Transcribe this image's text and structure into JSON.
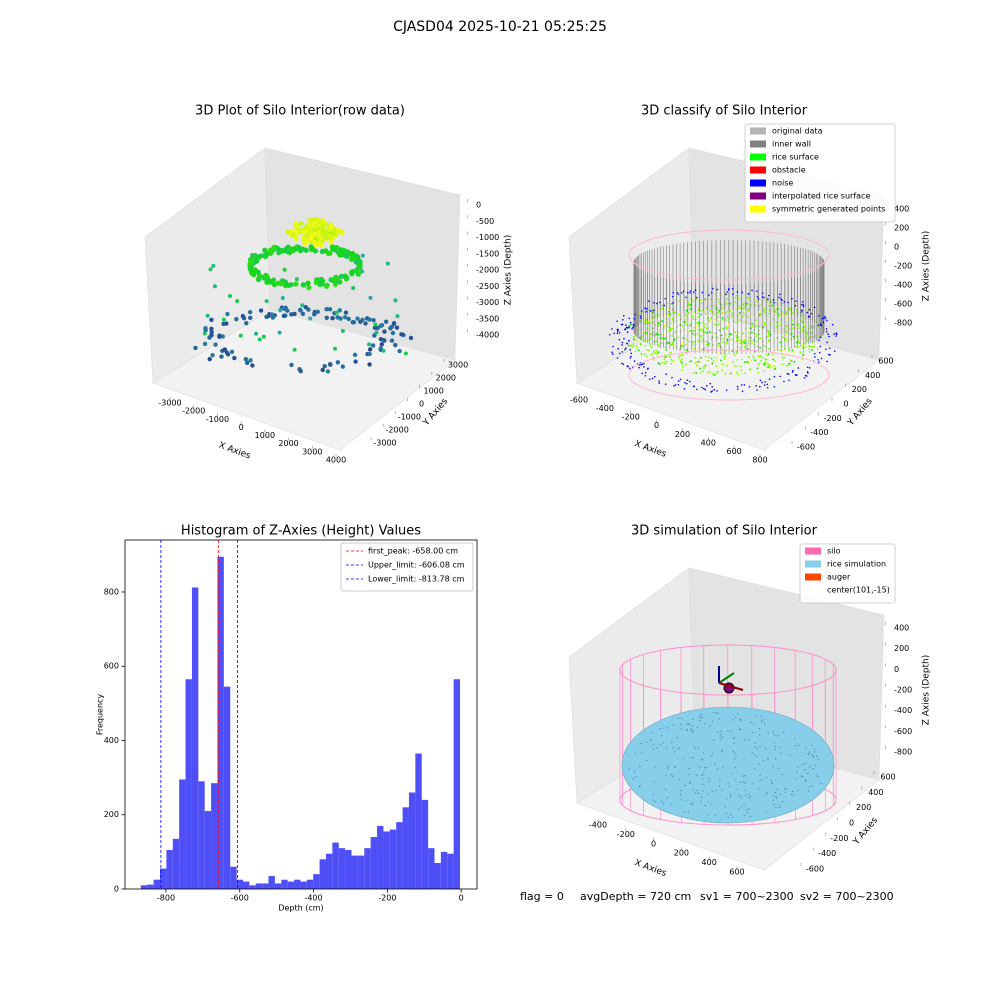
{
  "title": "CJASD04 2025-10-21 05:25:25",
  "chart_data": [
    {
      "type": "scatter3d",
      "title": "3D Plot of Silo Interior(row data)",
      "xlabel": "X Axies",
      "ylabel": "Y Axies",
      "zlabel": "Z Axies (Depth)",
      "xlim": [
        -3000,
        4000
      ],
      "xticks": [
        -3000,
        -2000,
        -1000,
        0,
        1000,
        2000,
        3000,
        4000
      ],
      "ylim": [
        -3000,
        3000
      ],
      "yticks": [
        -3000,
        -2000,
        -1000,
        0,
        1000,
        2000,
        3000
      ],
      "zlim": [
        0,
        -4000
      ],
      "zticks": [
        0,
        -500,
        -1000,
        -1500,
        -2000,
        -2500,
        -3000,
        -3500,
        -4000
      ]
    },
    {
      "type": "scatter3d",
      "title": "3D classify of Silo Interior",
      "xlabel": "X Axies",
      "ylabel": "Y Axies",
      "zlabel": "Z Axies (Depth)",
      "xlim": [
        -600,
        800
      ],
      "xticks": [
        -600,
        -400,
        -200,
        0,
        200,
        400,
        600,
        800
      ],
      "ylim": [
        -600,
        600
      ],
      "yticks": [
        -600,
        -400,
        -200,
        0,
        200,
        400,
        600
      ],
      "zlim": [
        400,
        -800
      ],
      "zticks": [
        400,
        200,
        0,
        -200,
        -400,
        -600,
        -800
      ],
      "legend": [
        {
          "name": "original data",
          "color": "#b3b3b3"
        },
        {
          "name": "inner wall",
          "color": "#808080"
        },
        {
          "name": "rice surface",
          "color": "#00ff00"
        },
        {
          "name": "obstacle",
          "color": "#ff0000"
        },
        {
          "name": "noise",
          "color": "#0000ff"
        },
        {
          "name": "interpolated rice surface",
          "color": "#800080"
        },
        {
          "name": "symmetric generated points",
          "color": "#ffff00"
        }
      ]
    },
    {
      "type": "histogram",
      "title": "Histogram of Z-Axies (Height) Values",
      "xlabel": "Depth (cm)",
      "ylabel": "Frequency",
      "color": "#4f4ff7",
      "bins": [
        -868,
        -850.7,
        -833.4,
        -816.1,
        -798.8,
        -781.5,
        -764.2,
        -746.9,
        -729.6,
        -712.3,
        -695,
        -677.7,
        -660.4,
        -643.1,
        -625.8,
        -608.5,
        -591.2,
        -573.9,
        -556.6,
        -539.3,
        -522,
        -504.7,
        -487.4,
        -470.1,
        -452.8,
        -435.5,
        -418.2,
        -400.9,
        -383.6,
        -366.3,
        -349,
        -331.7,
        -314.4,
        -297.1,
        -279.8,
        -262.5,
        -245.2,
        -227.9,
        -210.6,
        -193.3,
        -176,
        -158.7,
        -141.4,
        -124.1,
        -106.8,
        -89.5,
        -72.2,
        -54.9,
        -37.6,
        -20.3,
        -3
      ],
      "values": [
        10,
        12,
        25,
        55,
        105,
        135,
        295,
        565,
        812,
        290,
        210,
        285,
        895,
        545,
        60,
        25,
        20,
        10,
        15,
        15,
        35,
        15,
        25,
        20,
        25,
        20,
        25,
        40,
        80,
        95,
        125,
        110,
        105,
        90,
        90,
        110,
        140,
        170,
        155,
        160,
        180,
        220,
        260,
        365,
        240,
        110,
        70,
        100,
        95,
        565
      ],
      "xlim": [
        -911,
        43
      ],
      "xticks": [
        -800,
        -600,
        -400,
        -200,
        0
      ],
      "ylim": [
        0,
        940
      ],
      "yticks": [
        0,
        200,
        400,
        600,
        800
      ],
      "lines": [
        {
          "label": "first_peak: -658.00 cm",
          "value": -658.0,
          "color": "#ff0000"
        },
        {
          "label": "Upper_limit: -606.08 cm",
          "value": -606.08,
          "color": "#0000ff"
        },
        {
          "label": "Lower_limit: -813.78 cm",
          "value": -813.78,
          "color": "#0000ff"
        }
      ],
      "legend": "upper right"
    },
    {
      "type": "surface3d",
      "title": "3D simulation of Silo Interior",
      "xlabel": "X Axies",
      "ylabel": "Y Axies",
      "zlabel": "Z Axies (Depth)",
      "xlim": [
        -400,
        600
      ],
      "xticks": [
        -400,
        -200,
        0,
        200,
        400,
        600
      ],
      "ylim": [
        -600,
        600
      ],
      "yticks": [
        -600,
        -400,
        -200,
        0,
        200,
        400,
        600
      ],
      "zlim": [
        400,
        -800
      ],
      "zticks": [
        400,
        200,
        0,
        -200,
        -400,
        -600,
        -800
      ],
      "legend": [
        {
          "name": "silo",
          "color": "#ff69b4"
        },
        {
          "name": "rice simulation",
          "color": "#87ceeb"
        },
        {
          "name": "auger",
          "color": "#ff4500"
        },
        {
          "name": "center(101,-15)",
          "color": null
        }
      ]
    }
  ],
  "footer": [
    "flag = 0",
    "avgDepth = 720 cm",
    "sv1 = 700~2300",
    "sv2 = 700~2300"
  ]
}
